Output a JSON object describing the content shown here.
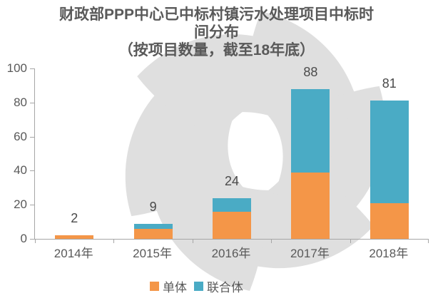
{
  "title": {
    "line1": "财政部PPP中心已中标村镇污水处理项目中标时",
    "line2": "间分布",
    "line3": "（按项目数量，截至18年底）"
  },
  "colors": {
    "series_single": "#F49648",
    "series_consortium": "#4AABC5",
    "text": "#595959",
    "axis": "#A6A6A6",
    "watermark": "#DFDFDF",
    "background": "#FFFFFF"
  },
  "chart_data": {
    "type": "bar",
    "stacked": true,
    "title": "财政部PPP中心已中标村镇污水处理项目中标时间分布",
    "subtitle": "（按项目数量，截至18年底）",
    "categories": [
      "2014年",
      "2015年",
      "2016年",
      "2017年",
      "2018年"
    ],
    "series": [
      {
        "name": "单体",
        "color": "#F49648",
        "values": [
          2,
          6,
          16,
          39,
          21
        ]
      },
      {
        "name": "联合体",
        "color": "#4AABC5",
        "values": [
          0,
          3,
          8,
          49,
          60
        ]
      }
    ],
    "totals": [
      2,
      9,
      24,
      88,
      81
    ],
    "xlabel": "",
    "ylabel": "",
    "ylim": [
      0,
      100
    ],
    "yticks": [
      0,
      20,
      40,
      60,
      80,
      100
    ],
    "grid": false,
    "legend_position": "bottom"
  }
}
